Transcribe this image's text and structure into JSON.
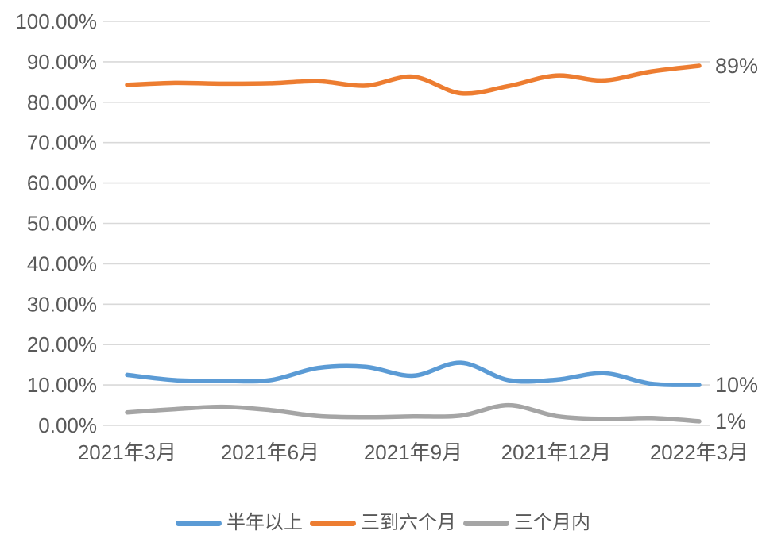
{
  "chart_data": {
    "type": "line",
    "smooth": true,
    "grid": true,
    "background_color": "#ffffff",
    "gridline_color": "#d9d9d9",
    "text_color": "#595959",
    "legend_position": "bottom",
    "x_count": 13,
    "x_tick_labels": [
      "2021年3月",
      "2021年6月",
      "2021年9月",
      "2021年12月",
      "2022年3月"
    ],
    "x_tick_positions": [
      0,
      3,
      6,
      9,
      12
    ],
    "y_axis": {
      "min": 0,
      "max": 100,
      "step": 10,
      "tick_labels": [
        "0.00%",
        "10.00%",
        "20.00%",
        "30.00%",
        "40.00%",
        "50.00%",
        "60.00%",
        "70.00%",
        "80.00%",
        "90.00%",
        "100.00%"
      ]
    },
    "series": [
      {
        "key": "half-year-plus",
        "name": "半年以上",
        "color": "#5B9BD5",
        "end_label": "10%",
        "values": [
          12.5,
          11.2,
          11.0,
          11.2,
          14.2,
          14.5,
          12.3,
          15.5,
          11.2,
          11.3,
          12.9,
          10.3,
          10.0
        ]
      },
      {
        "key": "three-to-six-months",
        "name": "三到六个月",
        "color": "#ED7D31",
        "end_label": "89%",
        "values": [
          84.3,
          84.8,
          84.6,
          84.7,
          85.2,
          84.1,
          86.3,
          82.2,
          84.0,
          86.6,
          85.4,
          87.6,
          89.0
        ]
      },
      {
        "key": "within-three-months",
        "name": "三个月内",
        "color": "#A5A5A5",
        "end_label": "1%",
        "values": [
          3.2,
          4.0,
          4.6,
          3.8,
          2.3,
          2.0,
          2.2,
          2.4,
          5.0,
          2.3,
          1.6,
          1.8,
          1.0
        ]
      }
    ]
  }
}
